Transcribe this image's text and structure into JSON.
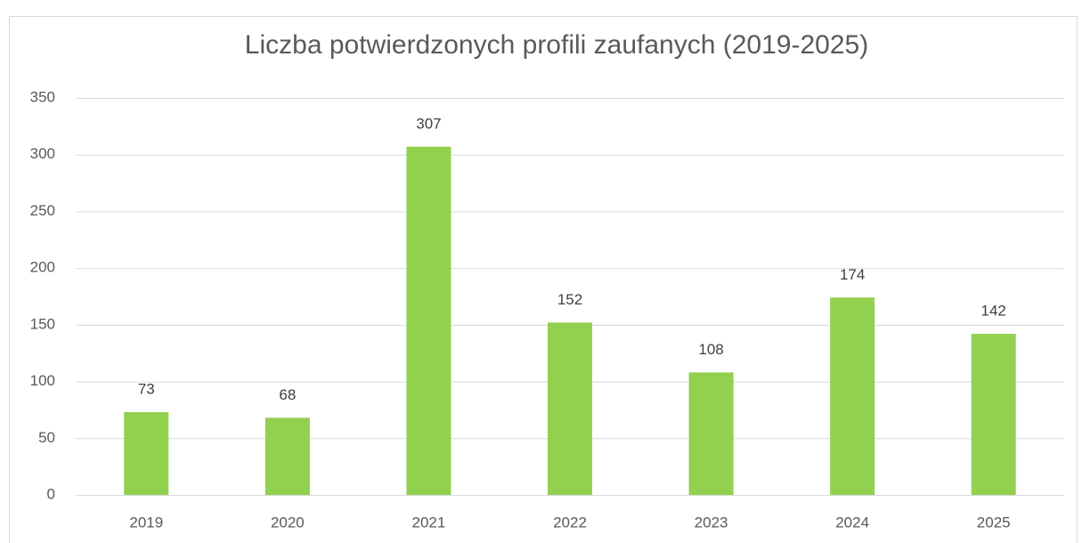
{
  "chart_data": {
    "type": "bar",
    "title": "Liczba potwierdzonych profili zaufanych (2019-2025)",
    "categories": [
      "2019",
      "2020",
      "2021",
      "2022",
      "2023",
      "2024",
      "2025"
    ],
    "values": [
      73,
      68,
      307,
      152,
      108,
      174,
      142
    ],
    "color": "#92d050",
    "ylim": [
      0,
      350
    ],
    "yticks": [
      0,
      50,
      100,
      150,
      200,
      250,
      300,
      350
    ],
    "grid": true,
    "data_labels": true
  }
}
